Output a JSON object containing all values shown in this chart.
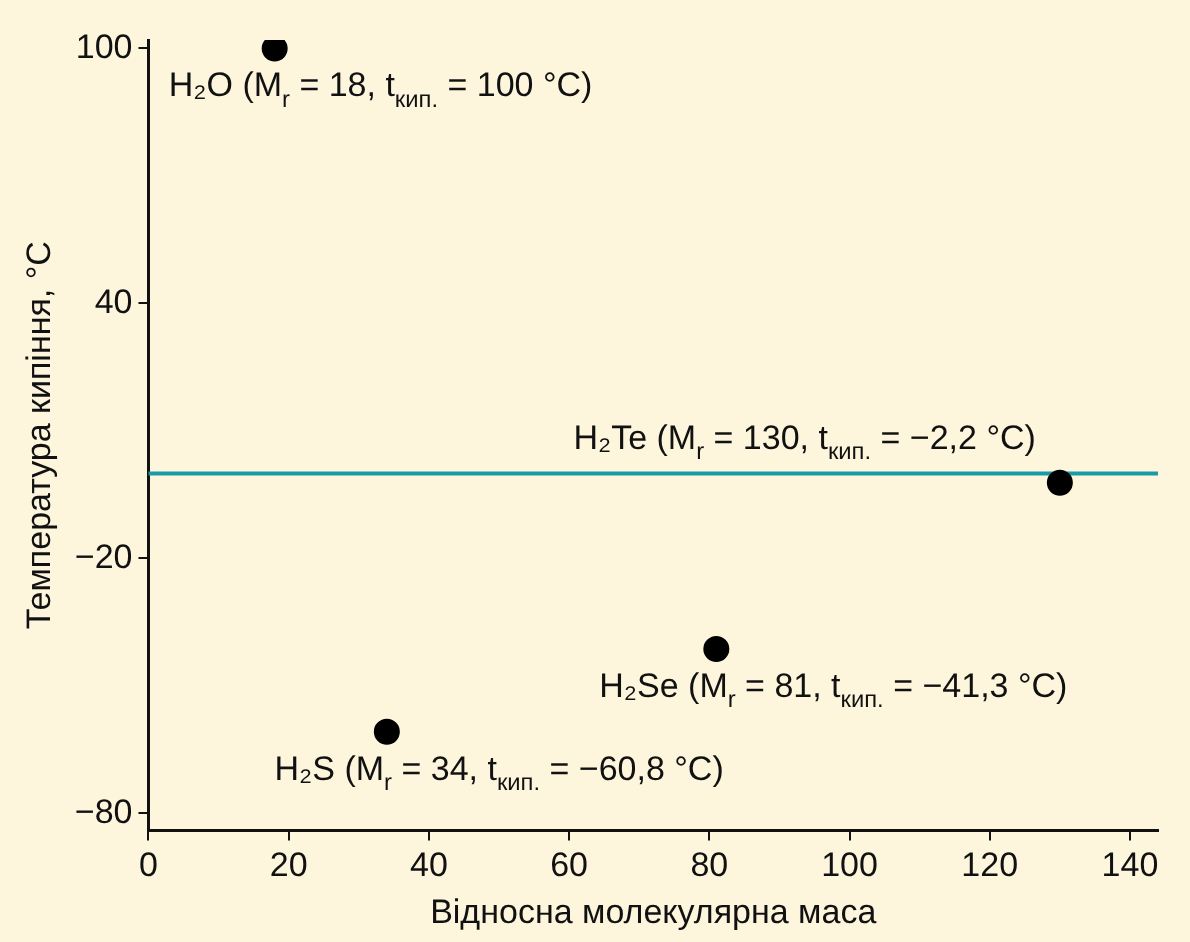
{
  "chart_data": {
    "type": "scatter",
    "xlabel": "Відносна молекулярна маса",
    "ylabel": "Температура кипіння, °C",
    "x": [
      18,
      34,
      81,
      130
    ],
    "values": [
      100,
      -60.8,
      -41.3,
      -2.2
    ],
    "color": "#000000",
    "marker": "circle",
    "xlim": [
      0,
      144
    ],
    "xticks": [
      0,
      20,
      40,
      60,
      80,
      100,
      120,
      140
    ],
    "ylim": [
      -84,
      102
    ],
    "yticks": [
      -80,
      -20,
      40,
      100
    ],
    "grid": false,
    "legend": false,
    "ref_lines": [
      {
        "axis": "y",
        "value": 0,
        "color": "#1a9aa8"
      }
    ],
    "annotations": [
      {
        "text": "H₂O (M$_{r}$ = 18, t$_{кип.}$ = 100 °C)",
        "x": 18,
        "y": 100
      },
      {
        "text": "H₂S (M$_{r}$ = 34, t$_{кип.}$ = −60,8 °C)",
        "x": 34,
        "y": -60.8
      },
      {
        "text": "H₂Se (M$_{r}$ = 81, t$_{кип.}$ = −41,3 °C)",
        "x": 81,
        "y": -41.3
      },
      {
        "text": "H₂Te (M$_{r}$ = 130, t$_{кип.}$ = −2,2 °C)",
        "x": 130,
        "y": -2.2
      }
    ]
  }
}
